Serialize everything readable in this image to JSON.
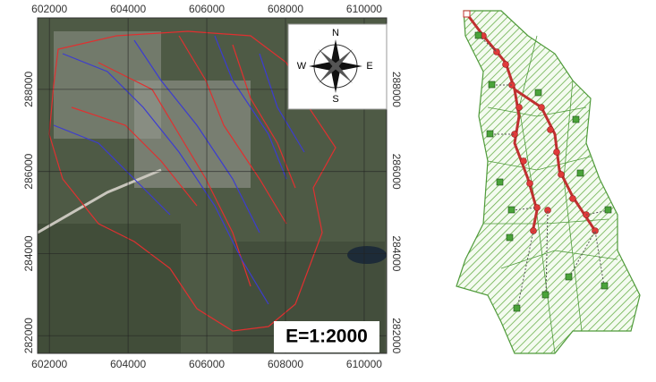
{
  "map": {
    "xlim": [
      601700,
      610570
    ],
    "ylim": [
      281570,
      289740
    ],
    "xticks": [
      602000,
      604000,
      606000,
      608000,
      610000
    ],
    "yticks": [
      282000,
      284000,
      286000,
      288000
    ],
    "compass": {
      "north": "N",
      "south": "S",
      "east": "E",
      "west": "W"
    },
    "scale": "E=1:2000"
  }
}
